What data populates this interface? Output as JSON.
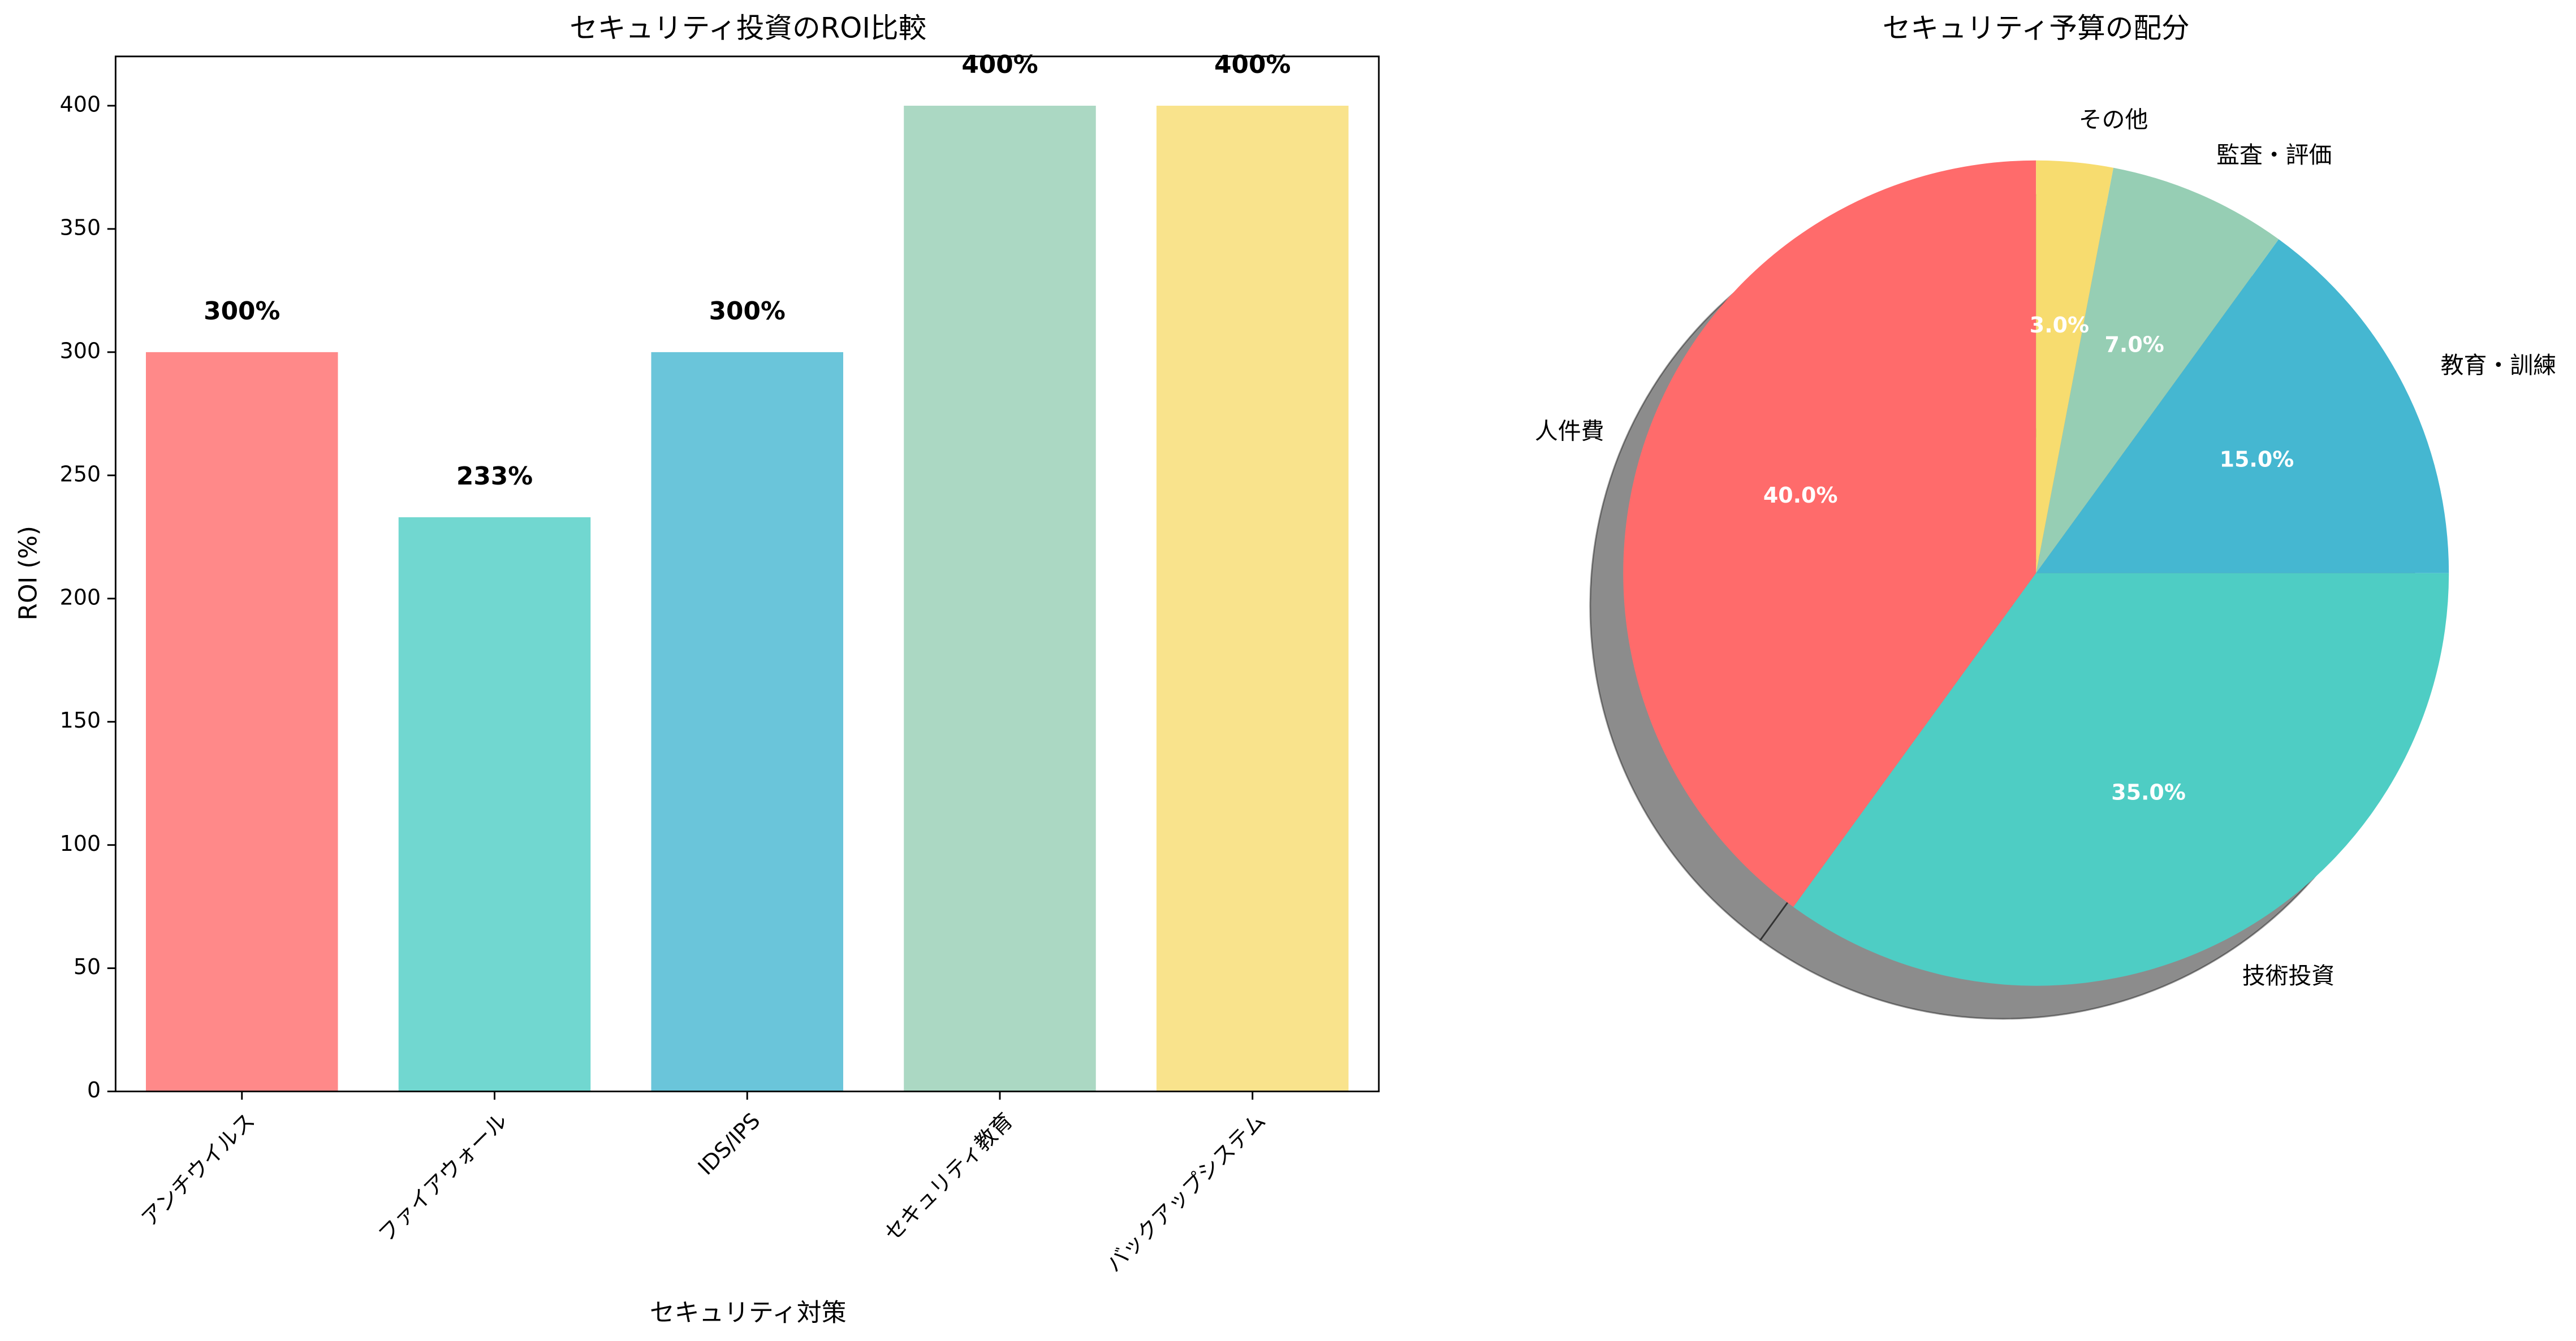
{
  "chart_data": [
    {
      "type": "bar",
      "title": "セキュリティ投資のROI比較",
      "xlabel": "セキュリティ対策",
      "ylabel": "ROI (%)",
      "categories": [
        "アンチウイルス",
        "ファイアウォール",
        "IDS/IPS",
        "セキュリティ教育",
        "バックアップシステム"
      ],
      "values": [
        300,
        233,
        300,
        400,
        400
      ],
      "value_labels": [
        "300%",
        "233%",
        "300%",
        "400%",
        "400%"
      ],
      "colors": [
        "#FF6B6B",
        "#4ECDC4",
        "#45B7D1",
        "#96CEB4",
        "#F7DC6F"
      ],
      "opacity": 0.8,
      "ylim": [
        0,
        420
      ],
      "yticks": [
        0,
        50,
        100,
        150,
        200,
        250,
        300,
        350,
        400
      ],
      "grid": false
    },
    {
      "type": "pie",
      "title": "セキュリティ予算の配分",
      "categories": [
        "人件費",
        "技術投資",
        "教育・訓練",
        "監査・評価",
        "その他"
      ],
      "values": [
        40,
        35,
        15,
        7,
        3
      ],
      "value_labels": [
        "40.0%",
        "35.0%",
        "15.0%",
        "7.0%",
        "3.0%"
      ],
      "colors": [
        "#FF6B6B",
        "#4ECDC4",
        "#45B7D1",
        "#96CEB4",
        "#F7DC6F"
      ],
      "startangle": 90,
      "shadow": true
    }
  ]
}
